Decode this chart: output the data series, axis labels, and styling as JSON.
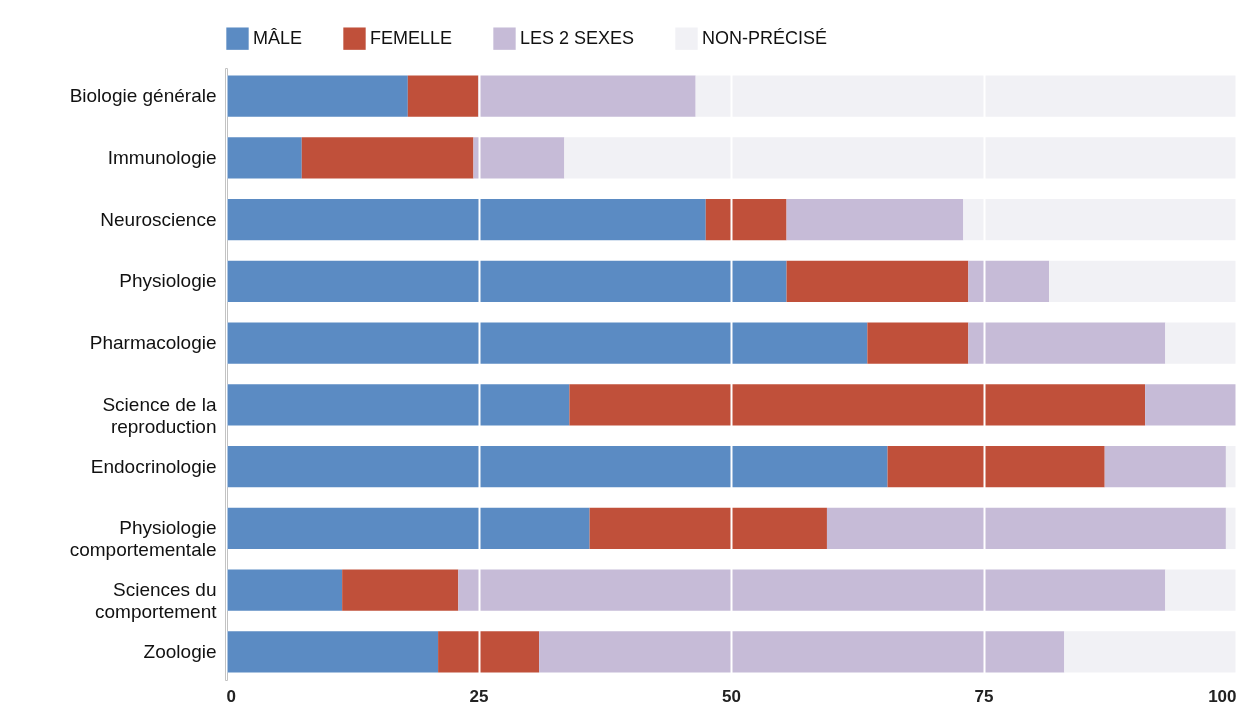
{
  "chart_data": {
    "type": "bar",
    "orientation": "horizontal",
    "stacked": true,
    "categories": [
      "Biologie générale",
      "Immunologie",
      "Neuroscience",
      "Physiologie",
      "Pharmacologie",
      "Science de la reproduction",
      "Endocrinologie",
      "Physiologie comportementale",
      "Sciences du comportement",
      "Zoologie"
    ],
    "series": [
      {
        "name": "MÂLE",
        "color": "#5b8bc3",
        "values": [
          18,
          7.5,
          47.5,
          55.5,
          63.5,
          34,
          65.5,
          36,
          11.5,
          21
        ]
      },
      {
        "name": "FEMELLE",
        "color": "#c0503a",
        "values": [
          7,
          17,
          8,
          18,
          10,
          57,
          21.5,
          23.5,
          11.5,
          10
        ]
      },
      {
        "name": "LES 2 SEXES",
        "color": "#c6bbd7",
        "values": [
          21.5,
          9,
          17.5,
          8,
          19.5,
          9,
          12,
          39.5,
          70,
          52
        ]
      },
      {
        "name": "NON-PRÉCISÉ",
        "color": "#f1f1f5",
        "values": [
          53.5,
          66.5,
          27,
          18.5,
          7,
          0,
          1,
          1,
          7,
          17
        ]
      }
    ],
    "xlim": [
      0,
      100
    ],
    "xticks": [
      0,
      25,
      50,
      75,
      100
    ],
    "grid": "x",
    "legend": "top"
  }
}
